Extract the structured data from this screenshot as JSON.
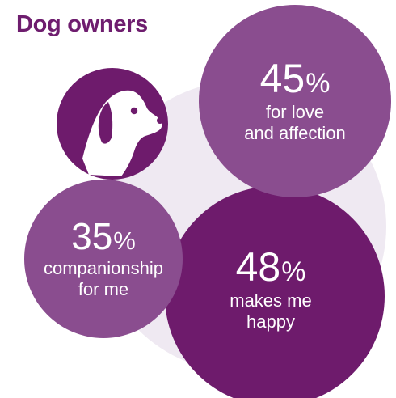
{
  "title": "Dog owners",
  "colors": {
    "title": "#6e1d6e",
    "dark_purple": "#6e1b6c",
    "mid_purple": "#8a4d8f",
    "light_background": "#efe9f2"
  },
  "icon": "dog-head-icon",
  "stats": {
    "love": {
      "value": "45",
      "unit": "%",
      "line1": "for love",
      "line2": "and affection"
    },
    "happy": {
      "value": "48",
      "unit": "%",
      "line1": "makes me",
      "line2": "happy"
    },
    "companionship": {
      "value": "35",
      "unit": "%",
      "line1": "companionship",
      "line2": "for me"
    }
  }
}
